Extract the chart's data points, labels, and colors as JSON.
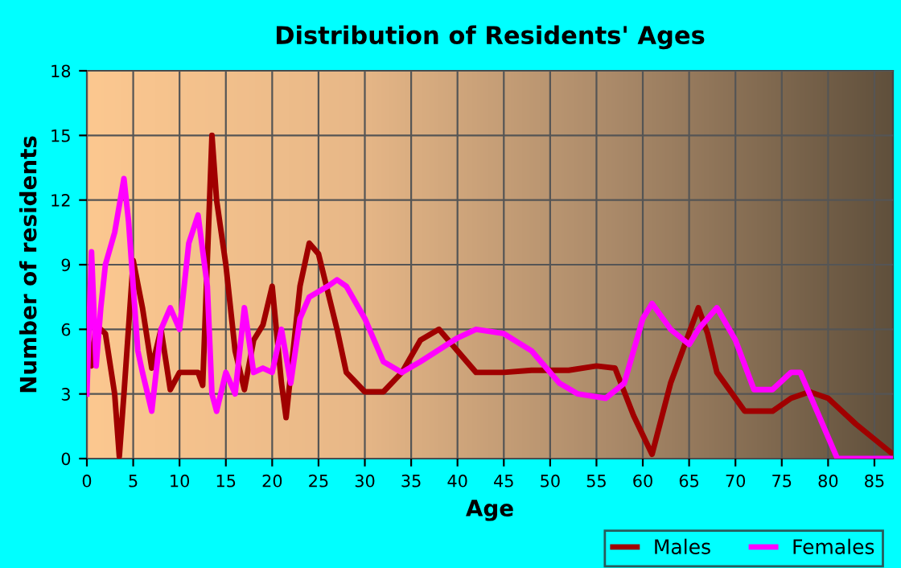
{
  "chart_data": {
    "type": "line",
    "title": "Distribution of Residents' Ages",
    "xlabel": "Age",
    "ylabel": "Number of residents",
    "xlim": [
      0,
      87
    ],
    "xticks": [
      0,
      5,
      10,
      15,
      20,
      25,
      30,
      35,
      40,
      45,
      50,
      55,
      60,
      65,
      70,
      75,
      80,
      85
    ],
    "ylim": [
      0,
      18
    ],
    "yticks": [
      0,
      3,
      6,
      9,
      12,
      15,
      18
    ],
    "grid": true,
    "legend": "bottom right",
    "marker": "none",
    "line_style": "solid",
    "series": [
      {
        "name": "Males",
        "color": "#a00000",
        "x": [
          0,
          0.5,
          1,
          2,
          3,
          3.5,
          4,
          5,
          6,
          7,
          8,
          9,
          10,
          12,
          12.5,
          13.5,
          14,
          15,
          16,
          17,
          18,
          19,
          20,
          21,
          21.5,
          23,
          24,
          25,
          27,
          28,
          30,
          32,
          34,
          36,
          38,
          40,
          42,
          45,
          48,
          52,
          55,
          57,
          59,
          61,
          63,
          66,
          67,
          68,
          71,
          74,
          76,
          78,
          80,
          83,
          87
        ],
        "values": [
          6,
          4.3,
          6.2,
          5.8,
          3,
          0.1,
          3,
          9.2,
          7,
          4.2,
          6,
          3.2,
          4,
          4,
          3.4,
          15,
          12,
          9,
          5,
          3.2,
          5.5,
          6.2,
          8,
          3.5,
          1.9,
          8,
          10,
          9.5,
          6,
          4,
          3.1,
          3.1,
          4,
          5.5,
          6,
          5,
          4,
          4,
          4.1,
          4.1,
          4.3,
          4.2,
          2,
          0.2,
          3.5,
          7,
          5.8,
          4,
          2.2,
          2.2,
          2.8,
          3.1,
          2.8,
          1.6,
          0.2
        ]
      },
      {
        "name": "Females",
        "color": "#ff00ff",
        "x": [
          0,
          0.5,
          1,
          1.5,
          2,
          3,
          4,
          4.5,
          5.5,
          6,
          7,
          8,
          9,
          10,
          11,
          12,
          13,
          13.5,
          14,
          15,
          16,
          17,
          18,
          19,
          20,
          21,
          22,
          23,
          24,
          26,
          27,
          28,
          30,
          32,
          34,
          36,
          40,
          42,
          45,
          48,
          51,
          53,
          56,
          58,
          60,
          61,
          63,
          65,
          66,
          68,
          70,
          72,
          74,
          76,
          77,
          79,
          81,
          87
        ],
        "values": [
          3,
          9.6,
          4.3,
          7,
          9,
          10.5,
          13,
          11,
          5,
          4,
          2.2,
          6,
          7,
          6,
          10,
          11.3,
          8,
          3,
          2.2,
          4,
          3,
          7,
          4,
          4.2,
          4,
          6,
          3.5,
          6.5,
          7.5,
          8,
          8.3,
          8,
          6.5,
          4.5,
          4,
          4.5,
          5.6,
          6,
          5.8,
          5,
          3.5,
          3,
          2.8,
          3.5,
          6.5,
          7.2,
          6,
          5.3,
          6,
          7,
          5.5,
          3.2,
          3.2,
          4,
          4,
          2,
          0,
          0
        ]
      }
    ]
  }
}
